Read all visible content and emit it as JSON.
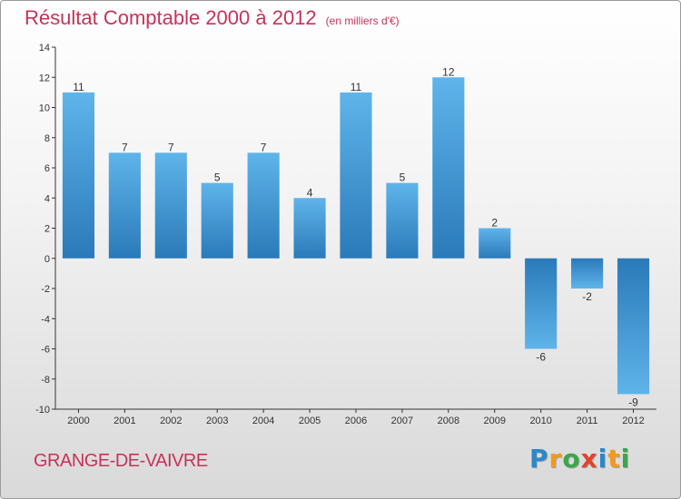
{
  "chart_data": {
    "type": "bar",
    "title": "Résultat Comptable 2000 à 2012",
    "subtitle": "(en milliers d'€)",
    "categories": [
      "2000",
      "2001",
      "2002",
      "2003",
      "2004",
      "2005",
      "2006",
      "2007",
      "2008",
      "2009",
      "2010",
      "2011",
      "2012"
    ],
    "values": [
      11,
      7,
      7,
      5,
      7,
      4,
      11,
      5,
      12,
      2,
      -6,
      -2,
      -9
    ],
    "value_labels": [
      "11",
      "7",
      "7",
      "5",
      "7",
      "4",
      "11",
      "5",
      "12",
      "2",
      "-6",
      "-2",
      "-9"
    ],
    "ylim": [
      -10,
      14
    ],
    "yticks": [
      -10,
      -8,
      -6,
      -4,
      -2,
      0,
      2,
      4,
      6,
      8,
      10,
      12,
      14
    ],
    "ytick_labels": [
      "-10",
      "-8",
      "-6",
      "-4",
      "-2",
      "0",
      "2",
      "4",
      "6",
      "8",
      "10",
      "12",
      "14"
    ],
    "xlabel": "",
    "ylabel": "",
    "grid": false,
    "bar_color_light": "#5fb4ea",
    "bar_color_dark": "#2a7ab9"
  },
  "footer": {
    "city": "GRANGE-DE-VAIVRE",
    "logo_letters": [
      "P",
      "r",
      "o",
      "x",
      "i",
      "t",
      "i"
    ],
    "logo_colors": [
      "#2c87c9",
      "#f29a1e",
      "#3aa64a",
      "#e0452b",
      "#2c87c9",
      "#f29a1e",
      "#3aa64a"
    ]
  },
  "colors": {
    "title": "#c8325a",
    "axis": "#333333"
  }
}
